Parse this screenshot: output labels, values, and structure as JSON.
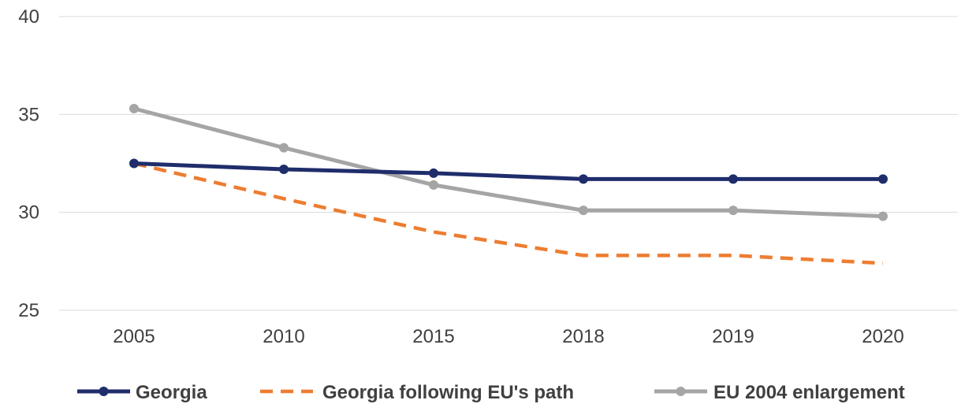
{
  "chart_data": {
    "type": "line",
    "title": "",
    "xlabel": "",
    "ylabel": "",
    "categories": [
      "2005",
      "2010",
      "2015",
      "2018",
      "2019",
      "2020"
    ],
    "ylim": [
      25,
      40
    ],
    "yticks": [
      25,
      30,
      35,
      40
    ],
    "grid": "horizontal",
    "legend_position": "bottom",
    "series": [
      {
        "name": "Georgia",
        "values": [
          32.5,
          32.2,
          32.0,
          31.7,
          31.7,
          31.7
        ],
        "color": "#1f2d6b",
        "style": "solid",
        "markers": true
      },
      {
        "name": "Georgia following EU's path",
        "values": [
          32.5,
          30.7,
          29.0,
          27.8,
          27.8,
          27.4
        ],
        "color": "#ed7d31",
        "style": "dashed",
        "markers": false
      },
      {
        "name": "EU 2004 enlargement",
        "values": [
          35.3,
          33.3,
          31.4,
          30.1,
          30.1,
          29.8
        ],
        "color": "#a5a5a5",
        "style": "solid",
        "markers": true
      }
    ]
  }
}
